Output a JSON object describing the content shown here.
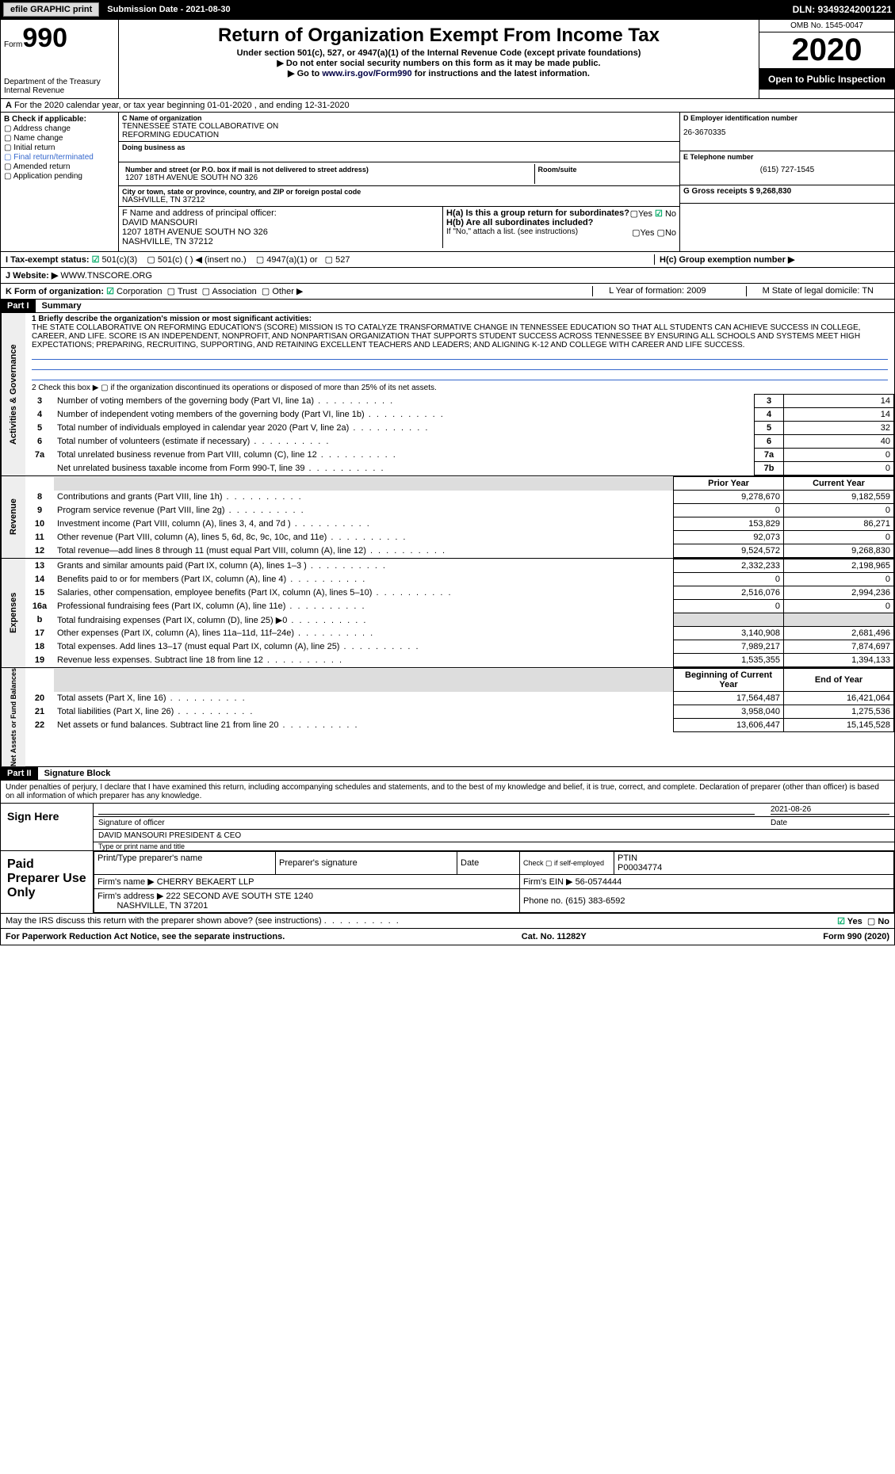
{
  "topbar": {
    "btn1": "efile GRAPHIC print",
    "sub_date_label": "Submission Date - 2021-08-30",
    "dln": "DLN: 93493242001221"
  },
  "header": {
    "form_word": "Form",
    "form_num": "990",
    "dept1": "Department of the Treasury",
    "dept2": "Internal Revenue",
    "title": "Return of Organization Exempt From Income Tax",
    "sub1": "Under section 501(c), 527, or 4947(a)(1) of the Internal Revenue Code (except private foundations)",
    "sub2": "▶ Do not enter social security numbers on this form as it may be made public.",
    "sub3_pre": "▶ Go to ",
    "sub3_link": "www.irs.gov/Form990",
    "sub3_post": " for instructions and the latest information.",
    "omb": "OMB No. 1545-0047",
    "year": "2020",
    "open": "Open to Public Inspection"
  },
  "row_a": "For the 2020 calendar year, or tax year beginning 01-01-2020   , and ending 12-31-2020",
  "boxB": {
    "label": "B Check if applicable:",
    "items": [
      "Address change",
      "Name change",
      "Initial return",
      "Final return/terminated",
      "Amended return",
      "Application pending"
    ]
  },
  "boxC": {
    "c_label": "C Name of organization",
    "name1": "TENNESSEE STATE COLLABORATIVE ON",
    "name2": "REFORMING EDUCATION",
    "dba_label": "Doing business as",
    "addr_label": "Number and street (or P.O. box if mail is not delivered to street address)",
    "room_label": "Room/suite",
    "addr": "1207 18TH AVENUE SOUTH NO 326",
    "city_label": "City or town, state or province, country, and ZIP or foreign postal code",
    "city": "NASHVILLE, TN  37212",
    "f_label": "F  Name and address of principal officer:",
    "officer": "DAVID MANSOURI",
    "officer_addr": "1207 18TH AVENUE SOUTH NO 326",
    "officer_city": "NASHVILLE, TN  37212"
  },
  "boxD": {
    "d_label": "D Employer identification number",
    "ein": "26-3670335",
    "e_label": "E Telephone number",
    "phone": "(615) 727-1545",
    "g_label": "G Gross receipts $ 9,268,830",
    "ha": "H(a)  Is this a group return for subordinates?",
    "hb": "H(b)  Are all subordinates included?",
    "hb_note": "If \"No,\" attach a list. (see instructions)",
    "hc": "H(c)  Group exemption number ▶",
    "yes": "Yes",
    "no": "No"
  },
  "lineI": "I    Tax-exempt status:",
  "lineI_opts": [
    "501(c)(3)",
    "501(c) (  ) ◀ (insert no.)",
    "4947(a)(1) or",
    "527"
  ],
  "lineJ_label": "J   Website: ▶",
  "lineJ": "WWW.TNSCORE.ORG",
  "lineK": {
    "label": "K Form of organization:",
    "opts": [
      "Corporation",
      "Trust",
      "Association",
      "Other ▶"
    ],
    "L": "L Year of formation: 2009",
    "M": "M State of legal domicile: TN"
  },
  "part1": {
    "label": "Part I",
    "title": "Summary",
    "q1_label": "1   Briefly describe the organization's mission or most significant activities:",
    "mission": "THE STATE COLLABORATIVE ON REFORMING EDUCATION'S (SCORE) MISSION IS TO CATALYZE TRANSFORMATIVE CHANGE IN TENNESSEE EDUCATION SO THAT ALL STUDENTS CAN ACHIEVE SUCCESS IN COLLEGE, CAREER, AND LIFE. SCORE IS AN INDEPENDENT, NONPROFIT, AND NONPARTISAN ORGANIZATION THAT SUPPORTS STUDENT SUCCESS ACROSS TENNESSEE BY ENSURING ALL SCHOOLS AND SYSTEMS MEET HIGH EXPECTATIONS; PREPARING, RECRUITING, SUPPORTING, AND RETAINING EXCELLENT TEACHERS AND LEADERS; AND ALIGNING K-12 AND COLLEGE WITH CAREER AND LIFE SUCCESS.",
    "q2": "2   Check this box ▶ ▢  if the organization discontinued its operations or disposed of more than 25% of its net assets.",
    "governance": [
      {
        "n": "3",
        "d": "Number of voting members of the governing body (Part VI, line 1a)",
        "c": "3",
        "v": "14"
      },
      {
        "n": "4",
        "d": "Number of independent voting members of the governing body (Part VI, line 1b)",
        "c": "4",
        "v": "14"
      },
      {
        "n": "5",
        "d": "Total number of individuals employed in calendar year 2020 (Part V, line 2a)",
        "c": "5",
        "v": "32"
      },
      {
        "n": "6",
        "d": "Total number of volunteers (estimate if necessary)",
        "c": "6",
        "v": "40"
      },
      {
        "n": "7a",
        "d": "Total unrelated business revenue from Part VIII, column (C), line 12",
        "c": "7a",
        "v": "0"
      },
      {
        "n": "",
        "d": "Net unrelated business taxable income from Form 990-T, line 39",
        "c": "7b",
        "v": "0"
      }
    ],
    "prior_hdr": "Prior Year",
    "curr_hdr": "Current Year",
    "revenue": [
      {
        "n": "8",
        "d": "Contributions and grants (Part VIII, line 1h)",
        "p": "9,278,670",
        "c": "9,182,559"
      },
      {
        "n": "9",
        "d": "Program service revenue (Part VIII, line 2g)",
        "p": "0",
        "c": "0"
      },
      {
        "n": "10",
        "d": "Investment income (Part VIII, column (A), lines 3, 4, and 7d )",
        "p": "153,829",
        "c": "86,271"
      },
      {
        "n": "11",
        "d": "Other revenue (Part VIII, column (A), lines 5, 6d, 8c, 9c, 10c, and 11e)",
        "p": "92,073",
        "c": "0"
      },
      {
        "n": "12",
        "d": "Total revenue—add lines 8 through 11 (must equal Part VIII, column (A), line 12)",
        "p": "9,524,572",
        "c": "9,268,830"
      }
    ],
    "expenses": [
      {
        "n": "13",
        "d": "Grants and similar amounts paid (Part IX, column (A), lines 1–3 )",
        "p": "2,332,233",
        "c": "2,198,965"
      },
      {
        "n": "14",
        "d": "Benefits paid to or for members (Part IX, column (A), line 4)",
        "p": "0",
        "c": "0"
      },
      {
        "n": "15",
        "d": "Salaries, other compensation, employee benefits (Part IX, column (A), lines 5–10)",
        "p": "2,516,076",
        "c": "2,994,236"
      },
      {
        "n": "16a",
        "d": "Professional fundraising fees (Part IX, column (A), line 11e)",
        "p": "0",
        "c": "0"
      },
      {
        "n": "b",
        "d": "Total fundraising expenses (Part IX, column (D), line 25) ▶0",
        "p": "",
        "c": ""
      },
      {
        "n": "17",
        "d": "Other expenses (Part IX, column (A), lines 11a–11d, 11f–24e)",
        "p": "3,140,908",
        "c": "2,681,496"
      },
      {
        "n": "18",
        "d": "Total expenses. Add lines 13–17 (must equal Part IX, column (A), line 25)",
        "p": "7,989,217",
        "c": "7,874,697"
      },
      {
        "n": "19",
        "d": "Revenue less expenses. Subtract line 18 from line 12",
        "p": "1,535,355",
        "c": "1,394,133"
      }
    ],
    "bcy_hdr": "Beginning of Current Year",
    "eoy_hdr": "End of Year",
    "netassets": [
      {
        "n": "20",
        "d": "Total assets (Part X, line 16)",
        "p": "17,564,487",
        "c": "16,421,064"
      },
      {
        "n": "21",
        "d": "Total liabilities (Part X, line 26)",
        "p": "3,958,040",
        "c": "1,275,536"
      },
      {
        "n": "22",
        "d": "Net assets or fund balances. Subtract line 21 from line 20",
        "p": "13,606,447",
        "c": "15,145,528"
      }
    ]
  },
  "part2": {
    "label": "Part II",
    "title": "Signature Block",
    "decl": "Under penalties of perjury, I declare that I have examined this return, including accompanying schedules and statements, and to the best of my knowledge and belief, it is true, correct, and complete. Declaration of preparer (other than officer) is based on all information of which preparer has any knowledge.",
    "sign_here": "Sign Here",
    "sig_officer": "Signature of officer",
    "date_lbl": "Date",
    "sig_date": "2021-08-26",
    "name_title": "DAVID MANSOURI  PRESIDENT & CEO",
    "type_lbl": "Type or print name and title",
    "paid": "Paid Preparer Use Only",
    "prep_name_lbl": "Print/Type preparer's name",
    "prep_sig_lbl": "Preparer's signature",
    "check_lbl": "Check ▢ if self-employed",
    "ptin_lbl": "PTIN",
    "ptin": "P00034774",
    "firm_name_lbl": "Firm's name   ▶",
    "firm_name": "CHERRY BEKAERT LLP",
    "firm_ein_lbl": "Firm's EIN ▶",
    "firm_ein": "56-0574444",
    "firm_addr_lbl": "Firm's address ▶",
    "firm_addr": "222 SECOND AVE SOUTH STE 1240",
    "firm_city": "NASHVILLE, TN  37201",
    "phone_lbl": "Phone no.",
    "firm_phone": "(615) 383-6592",
    "discuss": "May the IRS discuss this return with the preparer shown above? (see instructions)"
  },
  "footer": {
    "left": "For Paperwork Reduction Act Notice, see the separate instructions.",
    "mid": "Cat. No. 11282Y",
    "right": "Form 990 (2020)"
  },
  "tabs": {
    "act": "Activities & Governance",
    "rev": "Revenue",
    "exp": "Expenses",
    "net": "Net Assets or Fund Balances"
  }
}
